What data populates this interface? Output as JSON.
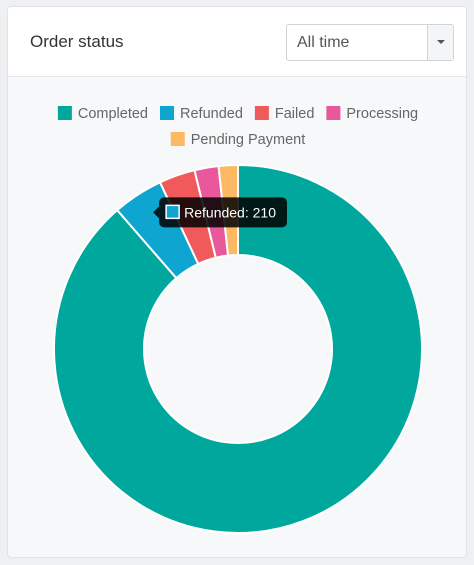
{
  "header": {
    "title": "Order status",
    "range_select": {
      "value": "All time"
    }
  },
  "chart_data": {
    "type": "pie",
    "variant": "doughnut",
    "categories": [
      "Completed",
      "Refunded",
      "Failed",
      "Processing",
      "Pending Payment"
    ],
    "values": [
      4200,
      210,
      150,
      100,
      80
    ],
    "colors": [
      "#00a79d",
      "#0ea5d0",
      "#f05a5a",
      "#e9589a",
      "#fdb863"
    ],
    "legend_position": "top",
    "tooltip": {
      "label": "Refunded",
      "value": 210,
      "color": "#0ea5d0"
    }
  }
}
